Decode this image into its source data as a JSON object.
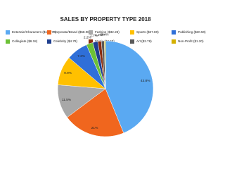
{
  "chart_data": {
    "type": "pie",
    "title": "SALES BY PROPERTY TYPE 2018",
    "categories": [
      "Entertain/Characters ($132.70)",
      "Corporate/Brand ($58.08)",
      "Fashion ($32.28)",
      "Sports ($27.80)",
      "Publishing ($20.50)",
      "Collegiate ($6.18)",
      "Celebrity ($4.78)",
      "Music ($3.58)",
      "Art ($2.78)",
      "Non-Profit ($1.20)"
    ],
    "values": [
      43.8,
      21,
      11.5,
      9.9,
      7.3,
      2.2,
      1.7,
      1.2,
      1,
      0.4
    ],
    "value_labels": [
      "43.8%",
      "21%",
      "11.5%",
      "9.9%",
      "7.3%",
      "2.2%",
      "1.7%",
      "1.2%",
      "1%",
      "0.4%"
    ],
    "colors": [
      "#5aa9f2",
      "#f0661e",
      "#a8a8a8",
      "#ffc000",
      "#2f6fd8",
      "#6cc136",
      "#1f3f8f",
      "#8b2e0f",
      "#5a5a5a",
      "#d4b000"
    ]
  }
}
